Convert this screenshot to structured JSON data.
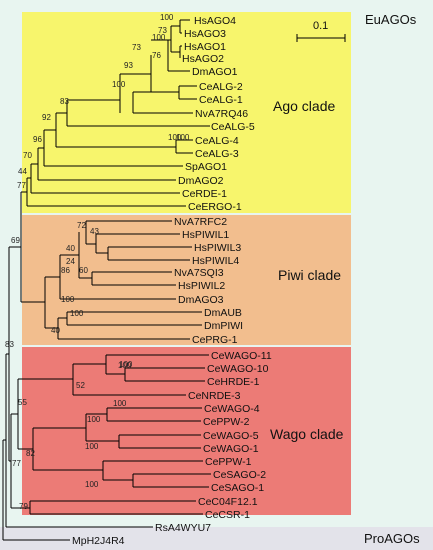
{
  "colors": {
    "eu_background": "#e8f5f0",
    "pro_background": "#e3e3ea",
    "ago_clade": "#f7f56c",
    "piwi_clade": "#f2be8e",
    "wago_clade": "#ec7b76",
    "branch": "#000000"
  },
  "groups": {
    "eu": "EuAGOs",
    "pro": "ProAGOs"
  },
  "clades": {
    "ago": "Ago clade",
    "piwi": "Piwi clade",
    "wago": "Wago clade"
  },
  "scale_bar": {
    "label": "0.1",
    "value": 0.1
  },
  "leaves": [
    "HsAGO4",
    "HsAGO3",
    "HsAGO1",
    "HsAGO2",
    "DmAGO1",
    "CeALG-2",
    "CeALG-1",
    "NvA7RQ46",
    "CeALG-5",
    "CeALG-4",
    "CeALG-3",
    "SpAGO1",
    "DmAGO2",
    "CeRDE-1",
    "CeERGO-1",
    "NvA7RFC2",
    "HsPIWIL1",
    "HsPIWIL3",
    "HsPIWIL4",
    "NvA7SQI3",
    "HsPIWIL2",
    "DmAGO3",
    "DmAUB",
    "DmPIWI",
    "CePRG-1",
    "CeWAGO-11",
    "CeWAGO-10",
    "CeHRDE-1",
    "CeNRDE-3",
    "CeWAGO-4",
    "CePPW-2",
    "CeWAGO-5",
    "CeWAGO-1",
    "CePPW-1",
    "CeSAGO-2",
    "CeSAGO-1",
    "CeC04F12.1",
    "CeCSR-1",
    "RsA4WYU7",
    "MpH2J4R4"
  ],
  "bootstrap": [
    "100",
    "73",
    "100",
    "76",
    "73",
    "93",
    "100",
    "100",
    "83",
    "92",
    "100",
    "96",
    "70",
    "44",
    "77",
    "72",
    "43",
    "40",
    "24",
    "60",
    "86",
    "100",
    "100",
    "40",
    "69",
    "100",
    "100",
    "52",
    "100",
    "100",
    "55",
    "82",
    "100",
    "100",
    "79",
    "77",
    "83"
  ]
}
